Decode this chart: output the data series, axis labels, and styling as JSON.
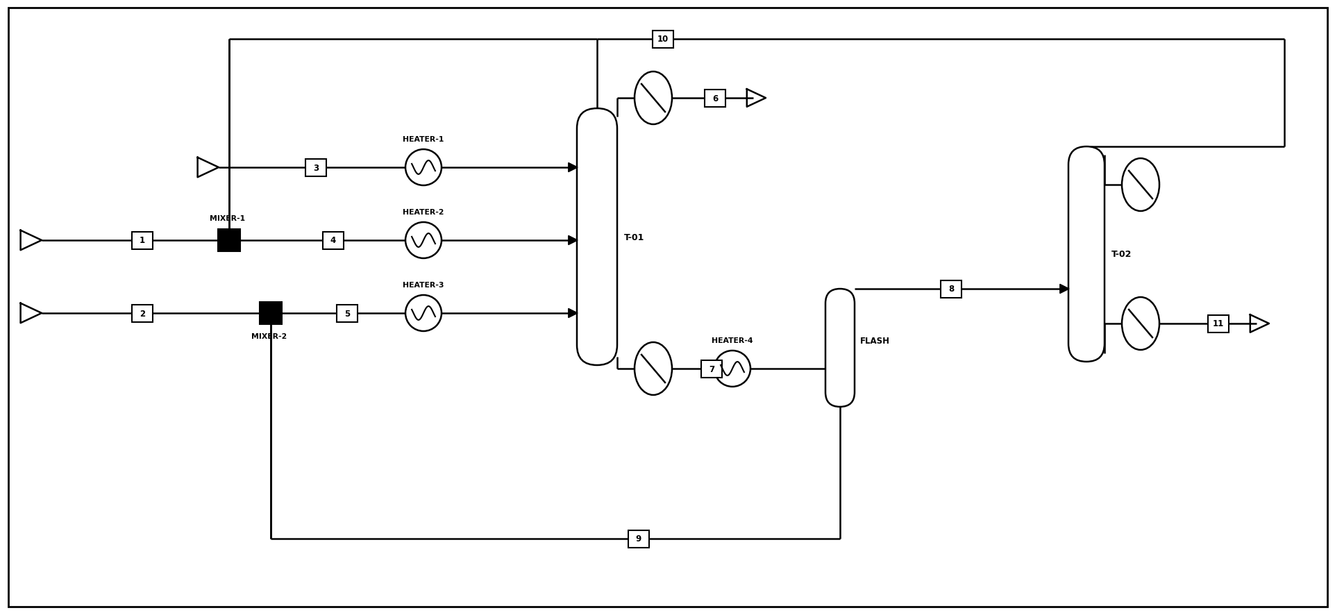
{
  "fig_width": 19.24,
  "fig_height": 8.87,
  "bg_color": "#ffffff",
  "line_color": "#000000",
  "lw": 1.8,
  "equipment": {
    "MIXER1_label": "MIXER-1",
    "MIXER2_label": "MIXER-2",
    "HEATER1_label": "HEATER-1",
    "HEATER2_label": "HEATER-2",
    "HEATER3_label": "HEATER-3",
    "HEATER4_label": "HEATER-4",
    "T01_label": "T-01",
    "T02_label": "T-02",
    "FLASH_label": "FLASH"
  }
}
